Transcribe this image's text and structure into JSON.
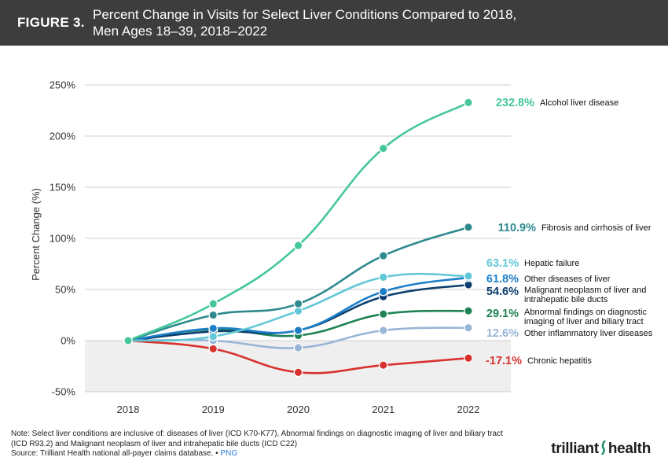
{
  "header": {
    "figure_label": "FIGURE 3.",
    "title_line1": "Percent Change in Visits for Select Liver Conditions Compared to 2018,",
    "title_line2": "Men Ages 18–39, 2018–2022"
  },
  "chart_data": {
    "type": "line",
    "title": "Percent Change in Visits for Select Liver Conditions Compared to 2018, Men Ages 18–39, 2018–2022",
    "xlabel": "",
    "ylabel": "Percent Change (%)",
    "categories": [
      "2018",
      "2019",
      "2020",
      "2021",
      "2022"
    ],
    "ylim": [
      -50,
      250
    ],
    "yticks": [
      -50,
      0,
      50,
      100,
      150,
      200,
      250
    ],
    "ytick_labels": [
      "-50%",
      "0%",
      "50%",
      "100%",
      "150%",
      "200%",
      "250%"
    ],
    "series": [
      {
        "name": "Alcohol liver disease",
        "end_label": "232.8%",
        "color": "#45c79b",
        "values": [
          0,
          36,
          93,
          188,
          232.8
        ]
      },
      {
        "name": "Fibrosis and cirrhosis of liver",
        "end_label": "110.9%",
        "color": "#2e8a8f",
        "values": [
          0,
          25,
          36,
          83,
          110.9
        ]
      },
      {
        "name": "Hepatic failure",
        "end_label": "63.1%",
        "color": "#62c7d6",
        "values": [
          0,
          4,
          29,
          62,
          63.1
        ]
      },
      {
        "name": "Other diseases of liver",
        "end_label": "61.8%",
        "color": "#1e7fc8",
        "values": [
          0,
          12,
          10,
          48,
          61.8
        ]
      },
      {
        "name": "Malignant neoplasm of liver and intrahepatic bile ducts",
        "end_label": "54.6%",
        "color": "#0b3e6f",
        "values": [
          0,
          9,
          10,
          43,
          54.6
        ]
      },
      {
        "name": "Abnormal findings on diagnostic imaging of liver and biliary tract",
        "end_label": "29.1%",
        "color": "#1f8355",
        "values": [
          0,
          11,
          5,
          26,
          29.1
        ]
      },
      {
        "name": "Other inflammatory liver diseases",
        "end_label": "12.6%",
        "color": "#98b5d6",
        "values": [
          0,
          0,
          -7,
          10,
          12.6
        ]
      },
      {
        "name": "Chronic hepatitis",
        "end_label": "-17.1%",
        "color": "#d8322f",
        "values": [
          0,
          -8,
          -31,
          -24,
          -17.1
        ]
      }
    ],
    "label_lines": [
      [
        "Alcohol liver disease"
      ],
      [
        "Fibrosis and cirrhosis of liver"
      ],
      [
        "Hepatic failure"
      ],
      [
        "Other diseases of liver"
      ],
      [
        "Malignant neoplasm of liver and",
        "intrahepatic bile ducts"
      ],
      [
        "Abnormal findings on diagnostic",
        "imaging of liver and biliary tract"
      ],
      [
        "Other inflammatory liver diseases"
      ],
      [
        "Chronic hepatitis"
      ]
    ],
    "negative_region_fill": "#efefef",
    "grid": true
  },
  "footer": {
    "note_line1": "Note: Select liver conditions are inclusive of: diseases of liver (ICD K70-K77), Abnormal findings on diagnostic imaging of liver and biliary tract",
    "note_line2": "(ICD R93.2) and Malignant neoplasm of liver and intrahepatic bile ducts (ICD C22)",
    "source": "Source: Trilliant Health national all-payer claims database.",
    "bullet": "•",
    "png_link": "PNG"
  },
  "logo": {
    "part1": "trilliant",
    "part2": "health"
  }
}
